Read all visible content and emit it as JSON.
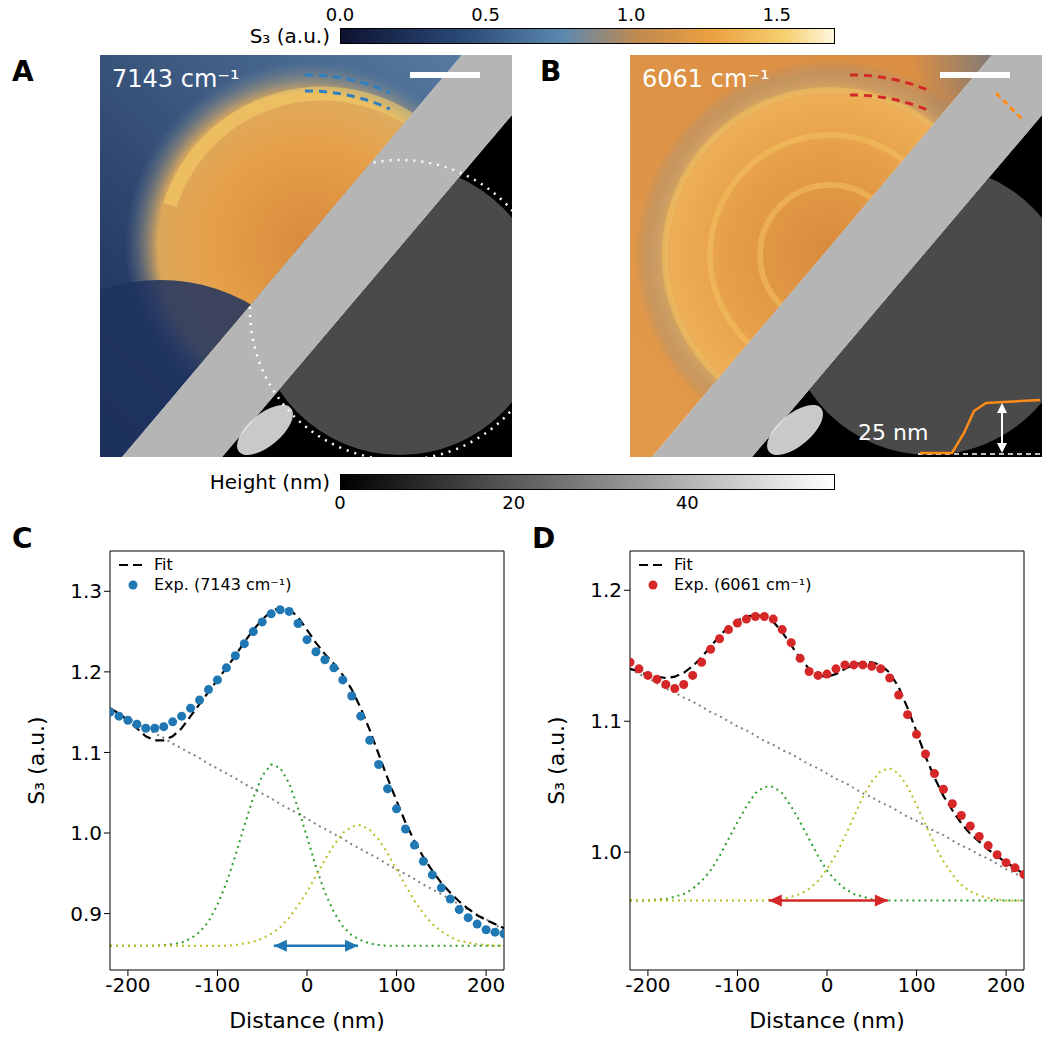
{
  "figure": {
    "panel_letters": [
      "A",
      "B",
      "C",
      "D"
    ],
    "maps": [
      {
        "label": "7143 cm⁻¹"
      },
      {
        "label": "6061 cm⁻¹",
        "inset_label": "25 nm"
      }
    ],
    "colorbars": [
      {
        "label": "S₃ (a.u.)",
        "range": [
          0,
          1.7
        ],
        "ticks": [
          {
            "value": 0,
            "label": "0.0"
          },
          0.5,
          {
            "value": 1,
            "label": "1.0"
          },
          1.5
        ]
      },
      {
        "label": "Height (nm)",
        "range": [
          0,
          57
        ],
        "ticks": [
          0,
          20,
          40
        ]
      }
    ]
  },
  "chart_data": [
    {
      "type": "line",
      "x_label": "Distance (nm)",
      "y_label": "S₃ (a.u.)",
      "legend": "upper left",
      "xlim": [
        -220,
        220
      ],
      "xticks": [
        -200,
        -100,
        0,
        100,
        200
      ],
      "ylim": [
        0.83,
        1.35
      ],
      "yticks": [
        0.9,
        {
          "value": 1,
          "label": "1.0"
        },
        1.1,
        1.2,
        1.3
      ],
      "x": [
        -220,
        -210,
        -200,
        -190,
        -180,
        -170,
        -160,
        -150,
        -140,
        -130,
        -120,
        -110,
        -100,
        -90,
        -80,
        -70,
        -60,
        -50,
        -40,
        -30,
        -20,
        -10,
        0,
        10,
        20,
        30,
        40,
        50,
        60,
        70,
        80,
        90,
        100,
        110,
        120,
        130,
        140,
        150,
        160,
        170,
        180,
        190,
        200,
        210,
        220
      ],
      "arrow": {
        "x": [
          -37,
          57
        ],
        "y": 0.86,
        "color": "#1f77b4"
      },
      "series": [
        {
          "color": "#808080",
          "line_style": "dotted",
          "values": [
            1.155,
            1.149,
            1.143,
            1.136,
            1.13,
            1.124,
            1.118,
            1.111,
            1.105,
            1.099,
            1.093,
            1.086,
            1.08,
            1.074,
            1.068,
            1.061,
            1.055,
            1.049,
            1.043,
            1.036,
            1.03,
            1.024,
            1.018,
            1.011,
            1.005,
            0.999,
            0.993,
            0.986,
            0.98,
            0.974,
            0.968,
            0.961,
            0.955,
            0.949,
            0.943,
            0.936,
            0.93,
            0.924,
            0.918,
            0.911,
            0.905,
            0.899,
            0.893,
            0.886,
            0.88
          ]
        },
        {
          "color": "#2ca02c",
          "line_style": "dotted",
          "values": [
            0.86,
            0.86,
            0.86,
            0.86,
            0.86,
            0.86,
            0.861,
            0.862,
            0.864,
            0.869,
            0.877,
            0.89,
            0.911,
            0.938,
            0.972,
            1.009,
            1.044,
            1.071,
            1.085,
            1.081,
            1.062,
            1.031,
            0.995,
            0.958,
            0.926,
            0.902,
            0.884,
            0.873,
            0.867,
            0.863,
            0.861,
            0.86,
            0.86,
            0.86,
            0.86,
            0.86,
            0.86,
            0.86,
            0.86,
            0.86,
            0.86,
            0.86,
            0.86,
            0.86,
            0.86
          ]
        },
        {
          "color": "#bcbd22",
          "line_style": "dotted",
          "values": [
            0.86,
            0.86,
            0.86,
            0.86,
            0.86,
            0.86,
            0.86,
            0.86,
            0.86,
            0.86,
            0.86,
            0.86,
            0.86,
            0.86,
            0.861,
            0.863,
            0.865,
            0.869,
            0.875,
            0.883,
            0.895,
            0.91,
            0.927,
            0.947,
            0.967,
            0.985,
            1.0,
            1.008,
            1.01,
            1.004,
            0.992,
            0.975,
            0.955,
            0.935,
            0.916,
            0.9,
            0.887,
            0.878,
            0.871,
            0.866,
            0.864,
            0.862,
            0.861,
            0.86,
            0.86
          ]
        },
        {
          "name": "Fit",
          "color": "#000000",
          "line_style": "dashed",
          "values": [
            1.155,
            1.148,
            1.14,
            1.13,
            1.12,
            1.115,
            1.115,
            1.12,
            1.13,
            1.145,
            1.16,
            1.175,
            1.19,
            1.205,
            1.22,
            1.237,
            1.252,
            1.265,
            1.275,
            1.28,
            1.278,
            1.268,
            1.252,
            1.236,
            1.222,
            1.21,
            1.196,
            1.178,
            1.155,
            1.128,
            1.098,
            1.068,
            1.04,
            1.013,
            0.99,
            0.97,
            0.953,
            0.938,
            0.926,
            0.915,
            0.906,
            0.898,
            0.892,
            0.887,
            0.882
          ]
        },
        {
          "name": "Exp. (7143 cm⁻¹)",
          "type": "scatter",
          "marker": "circle",
          "color": "#1f77b4",
          "values": [
            1.15,
            1.145,
            1.14,
            1.135,
            1.13,
            1.13,
            1.132,
            1.138,
            1.145,
            1.155,
            1.165,
            1.178,
            1.19,
            1.205,
            1.22,
            1.235,
            1.25,
            1.262,
            1.272,
            1.277,
            1.275,
            1.26,
            1.24,
            1.225,
            1.215,
            1.205,
            1.19,
            1.17,
            1.145,
            1.115,
            1.085,
            1.055,
            1.03,
            1.005,
            0.985,
            0.965,
            0.948,
            0.932,
            0.918,
            0.905,
            0.895,
            0.887,
            0.88,
            0.877,
            0.875
          ]
        }
      ]
    },
    {
      "type": "line",
      "x_label": "Distance (nm)",
      "y_label": "S₃ (a.u.)",
      "legend": "upper left",
      "xlim": [
        -220,
        220
      ],
      "xticks": [
        -200,
        -100,
        0,
        100,
        200
      ],
      "ylim": [
        0.91,
        1.23
      ],
      "yticks": [
        {
          "value": 1,
          "label": "1.0"
        },
        1.1,
        1.2
      ],
      "x": [
        -220,
        -210,
        -200,
        -190,
        -180,
        -170,
        -160,
        -150,
        -140,
        -130,
        -120,
        -110,
        -100,
        -90,
        -80,
        -70,
        -60,
        -50,
        -40,
        -30,
        -20,
        -10,
        0,
        10,
        20,
        30,
        40,
        50,
        60,
        70,
        80,
        90,
        100,
        110,
        120,
        130,
        140,
        150,
        160,
        170,
        180,
        190,
        200,
        210,
        220
      ],
      "arrow": {
        "x": [
          -65,
          68
        ],
        "y": 0.963,
        "color": "#d62728"
      },
      "series": [
        {
          "color": "#808080",
          "line_style": "dotted",
          "values": [
            1.14,
            1.136,
            1.133,
            1.129,
            1.125,
            1.122,
            1.118,
            1.115,
            1.111,
            1.107,
            1.104,
            1.1,
            1.096,
            1.093,
            1.089,
            1.085,
            1.082,
            1.078,
            1.075,
            1.071,
            1.067,
            1.064,
            1.06,
            1.056,
            1.053,
            1.049,
            1.045,
            1.042,
            1.038,
            1.035,
            1.031,
            1.027,
            1.024,
            1.02,
            1.016,
            1.013,
            1.009,
            1.005,
            1.002,
            0.998,
            0.995,
            0.991,
            0.987,
            0.984,
            0.98
          ]
        },
        {
          "color": "#2ca02c",
          "line_style": "dotted",
          "values": [
            0.963,
            0.963,
            0.963,
            0.964,
            0.964,
            0.966,
            0.968,
            0.972,
            0.978,
            0.986,
            0.997,
            1.01,
            1.023,
            1.035,
            1.045,
            1.05,
            1.05,
            1.045,
            1.035,
            1.023,
            1.01,
            0.997,
            0.986,
            0.978,
            0.972,
            0.968,
            0.966,
            0.964,
            0.964,
            0.963,
            0.963,
            0.963,
            0.963,
            0.963,
            0.963,
            0.963,
            0.963,
            0.963,
            0.963,
            0.963,
            0.963,
            0.963,
            0.963,
            0.963,
            0.963
          ]
        },
        {
          "color": "#bcbd22",
          "line_style": "dotted",
          "values": [
            0.963,
            0.963,
            0.963,
            0.963,
            0.963,
            0.963,
            0.963,
            0.963,
            0.963,
            0.963,
            0.963,
            0.963,
            0.963,
            0.963,
            0.963,
            0.963,
            0.964,
            0.964,
            0.966,
            0.968,
            0.972,
            0.978,
            0.987,
            0.998,
            1.012,
            1.027,
            1.042,
            1.054,
            1.062,
            1.064,
            1.06,
            1.05,
            1.036,
            1.021,
            1.006,
            0.993,
            0.983,
            0.975,
            0.97,
            0.967,
            0.965,
            0.964,
            0.963,
            0.963,
            0.963
          ]
        },
        {
          "name": "Fit",
          "color": "#000000",
          "line_style": "dashed",
          "values": [
            1.14,
            1.138,
            1.135,
            1.134,
            1.133,
            1.134,
            1.137,
            1.142,
            1.149,
            1.157,
            1.165,
            1.172,
            1.177,
            1.18,
            1.181,
            1.18,
            1.176,
            1.168,
            1.158,
            1.148,
            1.14,
            1.135,
            1.134,
            1.136,
            1.14,
            1.143,
            1.145,
            1.145,
            1.143,
            1.137,
            1.126,
            1.11,
            1.092,
            1.073,
            1.057,
            1.043,
            1.032,
            1.022,
            1.014,
            1.008,
            1.002,
            0.997,
            0.992,
            0.988,
            0.983
          ]
        },
        {
          "name": "Exp. (6061 cm⁻¹)",
          "type": "scatter",
          "marker": "circle",
          "color": "#d62728",
          "values": [
            1.145,
            1.14,
            1.135,
            1.132,
            1.128,
            1.125,
            1.128,
            1.135,
            1.145,
            1.155,
            1.163,
            1.17,
            1.175,
            1.178,
            1.18,
            1.18,
            1.178,
            1.17,
            1.16,
            1.148,
            1.138,
            1.135,
            1.136,
            1.14,
            1.143,
            1.143,
            1.143,
            1.142,
            1.14,
            1.133,
            1.12,
            1.105,
            1.09,
            1.075,
            1.06,
            1.048,
            1.037,
            1.028,
            1.02,
            1.012,
            1.005,
            0.998,
            0.992,
            0.988,
            0.983
          ]
        }
      ]
    }
  ]
}
